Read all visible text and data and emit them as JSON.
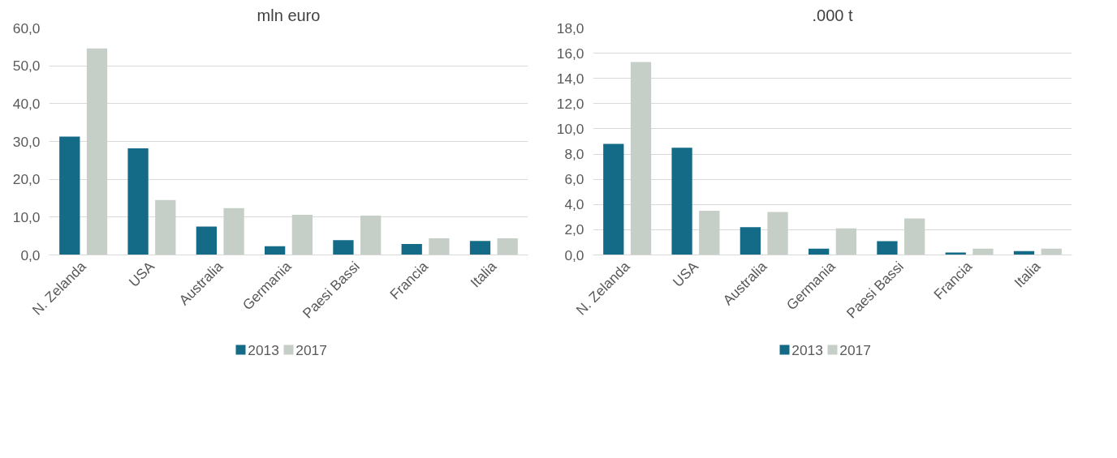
{
  "chart_data": [
    {
      "type": "bar",
      "title": "mln euro",
      "categories": [
        "N. Zelanda",
        "USA",
        "Australia",
        "Germania",
        "Paesi Bassi",
        "Francia",
        "Italia"
      ],
      "series": [
        {
          "name": "2013",
          "color": "#136b87",
          "values": [
            31.3,
            28.2,
            7.5,
            2.3,
            3.9,
            2.9,
            3.7
          ]
        },
        {
          "name": "2017",
          "color": "#c5cfc7",
          "values": [
            54.6,
            14.5,
            12.4,
            10.6,
            10.4,
            4.4,
            4.4
          ]
        }
      ],
      "ylim": [
        0,
        60
      ],
      "yticks": [
        {
          "value": 0,
          "label": "0,0"
        },
        {
          "value": 10,
          "label": "10,0"
        },
        {
          "value": 20,
          "label": "20,0"
        },
        {
          "value": 30,
          "label": "30,0"
        },
        {
          "value": 40,
          "label": "40,0"
        },
        {
          "value": 50,
          "label": "50,0"
        },
        {
          "value": 60,
          "label": "60,0"
        }
      ],
      "grid": "y",
      "legend": "bottom"
    },
    {
      "type": "bar",
      "title": ".000 t",
      "categories": [
        "N. Zelanda",
        "USA",
        "Australia",
        "Germania",
        "Paesi Bassi",
        "Francia",
        "Italia"
      ],
      "series": [
        {
          "name": "2013",
          "color": "#136b87",
          "values": [
            8.8,
            8.5,
            2.2,
            0.5,
            1.1,
            0.2,
            0.3
          ]
        },
        {
          "name": "2017",
          "color": "#c5cfc7",
          "values": [
            15.3,
            3.5,
            3.4,
            2.1,
            2.9,
            0.5,
            0.5
          ]
        }
      ],
      "ylim": [
        0,
        18
      ],
      "yticks": [
        {
          "value": 0,
          "label": "0,0"
        },
        {
          "value": 2,
          "label": "2,0"
        },
        {
          "value": 4,
          "label": "4,0"
        },
        {
          "value": 6,
          "label": "6,0"
        },
        {
          "value": 8,
          "label": "8,0"
        },
        {
          "value": 10,
          "label": "10,0"
        },
        {
          "value": 12,
          "label": "12,0"
        },
        {
          "value": 14,
          "label": "14,0"
        },
        {
          "value": 16,
          "label": "16,0"
        },
        {
          "value": 18,
          "label": "18,0"
        }
      ],
      "grid": "y",
      "legend": "bottom"
    }
  ]
}
